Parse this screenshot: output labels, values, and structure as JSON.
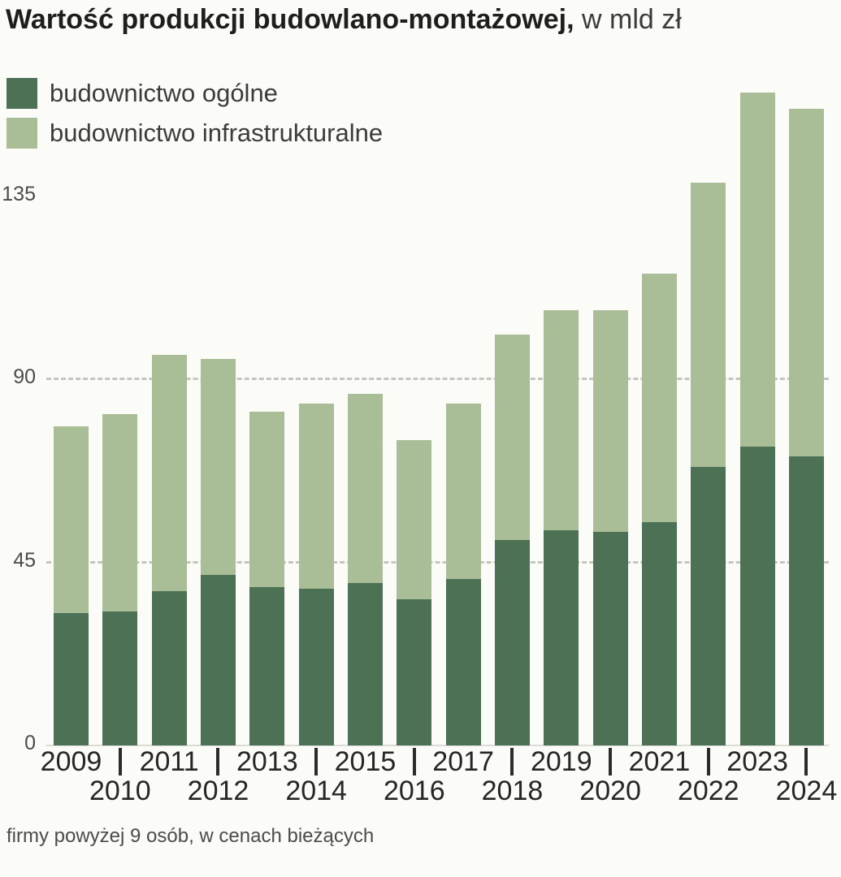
{
  "title": {
    "main": "Wartość produkcji budowlano-montażowej,",
    "unit": " w mld zł"
  },
  "footnote": "firmy powyżej 9 osób, w cenach bieżących",
  "colors": {
    "dark_green": "#4d7154",
    "light_green": "#a9bd97",
    "gridline": "#c5c5c0",
    "baseline": "#dbdbd7",
    "axis_text": "#262624",
    "ytick_text": "#4b4b47"
  },
  "chart_data": {
    "type": "bar",
    "stacked": true,
    "title": "Wartość produkcji budowlano-montażowej, w mld zł",
    "xlabel": "",
    "ylabel": "mld zł",
    "categories": [
      "2009",
      "2010",
      "2011",
      "2012",
      "2013",
      "2014",
      "2015",
      "2016",
      "2017",
      "2018",
      "2019",
      "2020",
      "2021",
      "2022",
      "2023",
      "2024"
    ],
    "series": [
      {
        "name": "budownictwo ogólne",
        "color": "#4d7154",
        "values": [
          32.5,
          33,
          38,
          42,
          39,
          38.5,
          40,
          36,
          41,
          50.5,
          53,
          52.5,
          55,
          68.5,
          73.5,
          71
        ]
      },
      {
        "name": "budownictwo infrastrukturalne",
        "color": "#a9bd97",
        "values": [
          46,
          48.5,
          58,
          53,
          43,
          45.5,
          46.5,
          39,
          43,
          50.5,
          54,
          54.5,
          61,
          70,
          87,
          85.5
        ]
      }
    ],
    "totals": [
      78.5,
      81.5,
      96,
      95,
      82,
      84,
      86.5,
      75,
      84,
      101,
      107,
      107,
      116,
      138.5,
      160.5,
      156.5
    ],
    "ylim": [
      0,
      165
    ],
    "yticks": [
      0,
      45,
      90,
      135
    ],
    "dashed_gridlines": [
      45,
      90
    ],
    "grid": "horizontal-dashed",
    "legend_position": "top-left"
  }
}
